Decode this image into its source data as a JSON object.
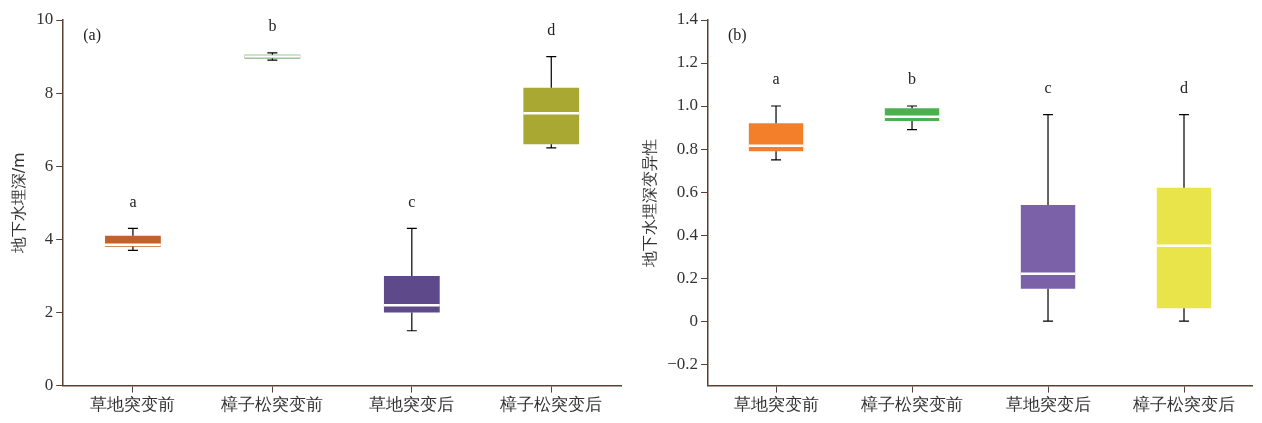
{
  "chart_data": [
    {
      "type": "box",
      "ylabel": "地下水埋深/m",
      "categories": [
        "草地突变前",
        "樟子松突变前",
        "草地突变后",
        "樟子松突变后"
      ],
      "colors": [
        "#c0622d",
        "#3f8a3a",
        "#5e4a8a",
        "#a9a832"
      ],
      "boxes": [
        {
          "low": 3.7,
          "q1": 3.8,
          "median": 3.85,
          "q3": 4.1,
          "high": 4.3
        },
        {
          "low": 8.9,
          "q1": 8.95,
          "median": 9.0,
          "q3": 9.05,
          "high": 9.1
        },
        {
          "low": 1.5,
          "q1": 2.0,
          "median": 2.2,
          "q3": 3.0,
          "high": 4.3
        },
        {
          "low": 6.5,
          "q1": 6.6,
          "median": 7.45,
          "q3": 8.15,
          "high": 9.0
        }
      ],
      "ylim": [
        0,
        10
      ],
      "yticks": [
        0,
        2,
        4,
        6,
        8,
        10
      ],
      "grid": false,
      "legend": false,
      "annotations": [
        "(a)",
        "a",
        "b",
        "c",
        "d"
      ]
    },
    {
      "type": "box",
      "ylabel": "地下水埋深变异性",
      "categories": [
        "草地突变前",
        "樟子松突变前",
        "草地突变后",
        "樟子松突变后"
      ],
      "colors": [
        "#f47f2a",
        "#4caf50",
        "#7b62a8",
        "#e8e44a"
      ],
      "boxes": [
        {
          "low": 0.75,
          "q1": 0.79,
          "median": 0.815,
          "q3": 0.92,
          "high": 1.0
        },
        {
          "low": 0.89,
          "q1": 0.93,
          "median": 0.95,
          "q3": 0.99,
          "high": 1.0
        },
        {
          "low": 0,
          "q1": 0.15,
          "median": 0.22,
          "q3": 0.54,
          "high": 0.96
        },
        {
          "low": 0,
          "q1": 0.06,
          "median": 0.35,
          "q3": 0.62,
          "high": 0.96
        }
      ],
      "ylim": [
        -0.3,
        1.4
      ],
      "yticks": [
        {
          "value": -0.2,
          "label": "−0.2"
        },
        0,
        0.2,
        0.4,
        0.6,
        0.8,
        {
          "value": 1.0,
          "label": "1.0"
        },
        1.2,
        1.4
      ],
      "grid": false,
      "legend": false,
      "annotations": [
        "(b)",
        "a",
        "b",
        "c",
        "d"
      ]
    }
  ]
}
